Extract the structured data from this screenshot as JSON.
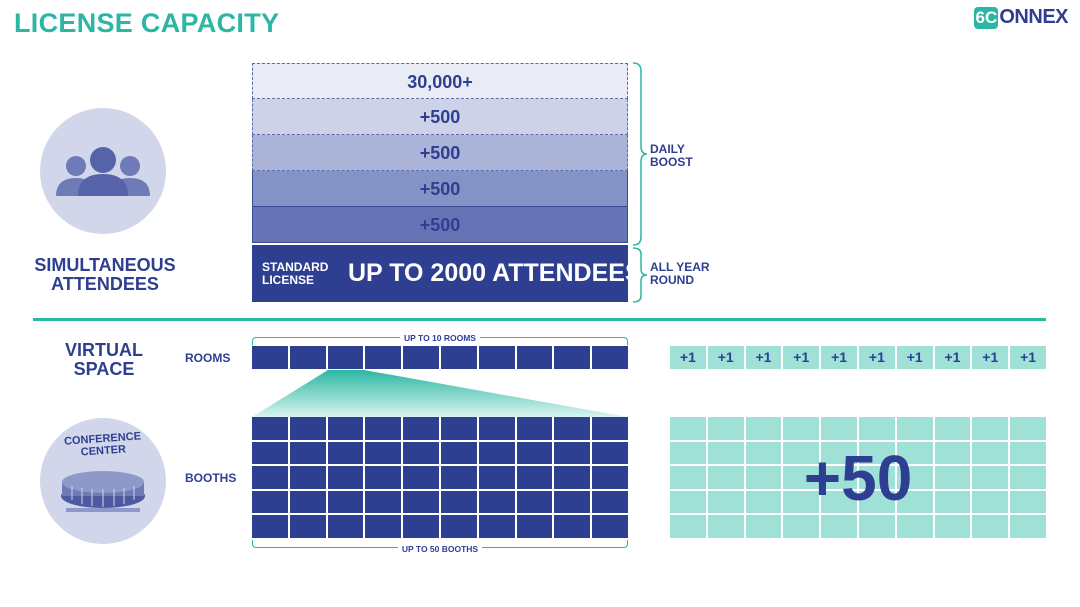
{
  "header": {
    "title": "LICENSE CAPACITY",
    "logo": {
      "badge": "6C",
      "text": "ONNEX"
    }
  },
  "attendees": {
    "label_line1": "SIMULTANEOUS",
    "label_line2": "ATTENDEES",
    "icon": "people-group-icon",
    "tiers": [
      "30,000+",
      "+500",
      "+500",
      "+500",
      "+500"
    ],
    "standard": {
      "label_line1": "STANDARD",
      "label_line2": "LICENSE",
      "value": "UP TO 2000 ATTENDEES"
    },
    "brace_daily_line1": "DAILY",
    "brace_daily_line2": "BOOST",
    "brace_year_line1": "ALL YEAR",
    "brace_year_line2": "ROUND"
  },
  "virtual_space": {
    "label_line1": "VIRTUAL",
    "label_line2": "SPACE",
    "rooms_label": "ROOMS",
    "rooms_caption": "UP TO 10 ROOMS",
    "rooms_count": 10,
    "rooms_addon": [
      "+1",
      "+1",
      "+1",
      "+1",
      "+1",
      "+1",
      "+1",
      "+1",
      "+1",
      "+1"
    ],
    "booths_label": "BOOTHS",
    "booths_caption": "UP TO 50 BOOTHS",
    "booths_count": 50,
    "booths_addon": "+50",
    "conference": {
      "label_line1": "CONFERENCE",
      "label_line2": "CENTER",
      "icon": "conference-center-icon"
    }
  },
  "colors": {
    "navy": "#2e3f92",
    "teal": "#2bb7a3",
    "mint": "#9fe1d7",
    "lavender": "#d2d6ea"
  }
}
